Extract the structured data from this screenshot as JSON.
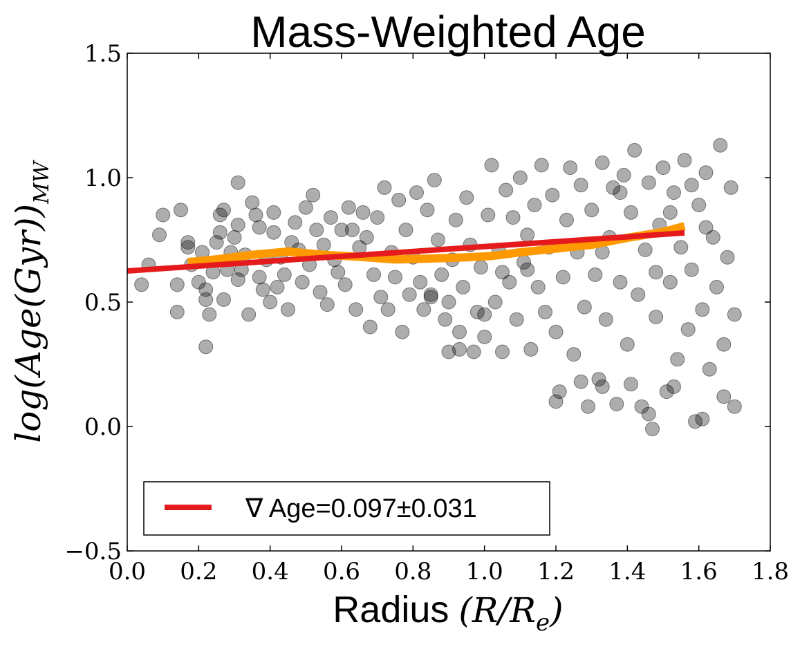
{
  "chart_data": {
    "type": "scatter",
    "title": "Mass-Weighted Age",
    "xlabel_text": "Radius",
    "xlabel_math": "(R/R",
    "xlabel_sub": "e",
    "xlabel_close": ")",
    "ylabel_math": "log(Age(Gyr))",
    "ylabel_sub": "MW",
    "xlim": [
      0.0,
      1.8
    ],
    "ylim": [
      -0.5,
      1.5
    ],
    "xticks": [
      0.0,
      0.2,
      0.4,
      0.6,
      0.8,
      1.0,
      1.2,
      1.4,
      1.6,
      1.8
    ],
    "xtick_labels": [
      "0.0",
      "0.2",
      "0.4",
      "0.6",
      "0.8",
      "1.0",
      "1.2",
      "1.4",
      "1.6",
      "1.8"
    ],
    "yticks": [
      -0.5,
      0.0,
      0.5,
      1.0,
      1.5
    ],
    "ytick_labels": [
      "−0.5",
      "0.0",
      "0.5",
      "1.0",
      "1.5"
    ],
    "legend": {
      "label": "∇ Age=0.097±0.031",
      "location": "lower-left"
    },
    "colors": {
      "fit_line": "#e41a1c",
      "running_median": "#ff9900",
      "points": "#000000"
    },
    "fit_line": {
      "name": "∇ Age=0.097±0.031",
      "x": [
        0.0,
        1.56
      ],
      "y": [
        0.625,
        0.778
      ]
    },
    "running_median": {
      "x": [
        0.17,
        0.25,
        0.35,
        0.45,
        0.55,
        0.65,
        0.75,
        0.85,
        0.95,
        1.02,
        1.1,
        1.2,
        1.3,
        1.4,
        1.5,
        1.56
      ],
      "y": [
        0.66,
        0.672,
        0.69,
        0.703,
        0.69,
        0.682,
        0.671,
        0.675,
        0.68,
        0.685,
        0.7,
        0.715,
        0.73,
        0.758,
        0.782,
        0.805
      ]
    },
    "points": [
      [
        0.04,
        0.57
      ],
      [
        0.06,
        0.65
      ],
      [
        0.09,
        0.77
      ],
      [
        0.1,
        0.85
      ],
      [
        0.14,
        0.46
      ],
      [
        0.14,
        0.57
      ],
      [
        0.15,
        0.87
      ],
      [
        0.17,
        0.72
      ],
      [
        0.17,
        0.74
      ],
      [
        0.18,
        0.65
      ],
      [
        0.2,
        0.58
      ],
      [
        0.21,
        0.7
      ],
      [
        0.22,
        0.55
      ],
      [
        0.22,
        0.51
      ],
      [
        0.22,
        0.32
      ],
      [
        0.23,
        0.45
      ],
      [
        0.24,
        0.62
      ],
      [
        0.25,
        0.74
      ],
      [
        0.26,
        0.78
      ],
      [
        0.26,
        0.85
      ],
      [
        0.27,
        0.87
      ],
      [
        0.27,
        0.51
      ],
      [
        0.28,
        0.63
      ],
      [
        0.29,
        0.7
      ],
      [
        0.3,
        0.76
      ],
      [
        0.31,
        0.59
      ],
      [
        0.31,
        0.81
      ],
      [
        0.31,
        0.98
      ],
      [
        0.32,
        0.63
      ],
      [
        0.33,
        0.69
      ],
      [
        0.34,
        0.45
      ],
      [
        0.35,
        0.9
      ],
      [
        0.36,
        0.85
      ],
      [
        0.37,
        0.8
      ],
      [
        0.37,
        0.6
      ],
      [
        0.38,
        0.55
      ],
      [
        0.39,
        0.67
      ],
      [
        0.4,
        0.5
      ],
      [
        0.41,
        0.78
      ],
      [
        0.41,
        0.86
      ],
      [
        0.42,
        0.56
      ],
      [
        0.43,
        0.68
      ],
      [
        0.44,
        0.61
      ],
      [
        0.45,
        0.47
      ],
      [
        0.46,
        0.74
      ],
      [
        0.47,
        0.82
      ],
      [
        0.48,
        0.71
      ],
      [
        0.49,
        0.58
      ],
      [
        0.5,
        0.88
      ],
      [
        0.51,
        0.65
      ],
      [
        0.52,
        0.93
      ],
      [
        0.53,
        0.79
      ],
      [
        0.54,
        0.54
      ],
      [
        0.55,
        0.73
      ],
      [
        0.56,
        0.49
      ],
      [
        0.57,
        0.84
      ],
      [
        0.58,
        0.67
      ],
      [
        0.59,
        0.62
      ],
      [
        0.6,
        0.79
      ],
      [
        0.61,
        0.57
      ],
      [
        0.62,
        0.88
      ],
      [
        0.63,
        0.79
      ],
      [
        0.64,
        0.47
      ],
      [
        0.65,
        0.72
      ],
      [
        0.66,
        0.86
      ],
      [
        0.67,
        0.76
      ],
      [
        0.68,
        0.4
      ],
      [
        0.69,
        0.61
      ],
      [
        0.7,
        0.84
      ],
      [
        0.71,
        0.52
      ],
      [
        0.72,
        0.96
      ],
      [
        0.73,
        0.47
      ],
      [
        0.74,
        0.7
      ],
      [
        0.75,
        0.6
      ],
      [
        0.76,
        0.91
      ],
      [
        0.77,
        0.38
      ],
      [
        0.78,
        0.79
      ],
      [
        0.79,
        0.53
      ],
      [
        0.8,
        0.68
      ],
      [
        0.81,
        0.94
      ],
      [
        0.82,
        0.58
      ],
      [
        0.83,
        0.47
      ],
      [
        0.84,
        0.87
      ],
      [
        0.85,
        0.52
      ],
      [
        0.86,
        0.99
      ],
      [
        0.87,
        0.75
      ],
      [
        0.88,
        0.61
      ],
      [
        0.89,
        0.43
      ],
      [
        0.9,
        0.3
      ],
      [
        0.91,
        0.67
      ],
      [
        0.92,
        0.83
      ],
      [
        0.93,
        0.31
      ],
      [
        0.94,
        0.56
      ],
      [
        0.95,
        0.92
      ],
      [
        0.96,
        0.73
      ],
      [
        0.97,
        0.3
      ],
      [
        0.98,
        0.46
      ],
      [
        0.99,
        0.64
      ],
      [
        1.0,
        0.36
      ],
      [
        1.01,
        0.85
      ],
      [
        1.02,
        1.05
      ],
      [
        1.03,
        0.5
      ],
      [
        1.04,
        0.71
      ],
      [
        1.05,
        0.3
      ],
      [
        1.06,
        0.95
      ],
      [
        1.07,
        0.58
      ],
      [
        1.08,
        0.84
      ],
      [
        1.09,
        0.43
      ],
      [
        1.1,
        1.0
      ],
      [
        1.11,
        0.66
      ],
      [
        1.12,
        0.77
      ],
      [
        1.13,
        0.31
      ],
      [
        1.14,
        0.89
      ],
      [
        1.15,
        0.56
      ],
      [
        1.16,
        1.05
      ],
      [
        1.17,
        0.46
      ],
      [
        1.18,
        0.72
      ],
      [
        1.19,
        0.93
      ],
      [
        1.2,
        0.38
      ],
      [
        1.21,
        0.14
      ],
      [
        1.22,
        0.6
      ],
      [
        1.23,
        0.83
      ],
      [
        1.24,
        1.04
      ],
      [
        1.25,
        0.29
      ],
      [
        1.26,
        0.7
      ],
      [
        1.27,
        0.97
      ],
      [
        1.28,
        0.48
      ],
      [
        1.29,
        0.08
      ],
      [
        1.3,
        0.87
      ],
      [
        1.31,
        0.61
      ],
      [
        1.32,
        0.19
      ],
      [
        1.33,
        1.06
      ],
      [
        1.34,
        0.43
      ],
      [
        1.35,
        0.76
      ],
      [
        1.36,
        0.96
      ],
      [
        1.37,
        0.09
      ],
      [
        1.38,
        0.58
      ],
      [
        1.39,
        1.01
      ],
      [
        1.4,
        0.33
      ],
      [
        1.41,
        0.86
      ],
      [
        1.42,
        1.11
      ],
      [
        1.43,
        0.53
      ],
      [
        1.44,
        0.08
      ],
      [
        1.45,
        0.71
      ],
      [
        1.46,
        0.98
      ],
      [
        1.47,
        -0.01
      ],
      [
        1.48,
        0.44
      ],
      [
        1.49,
        0.81
      ],
      [
        1.5,
        1.04
      ],
      [
        1.51,
        0.14
      ],
      [
        1.52,
        0.58
      ],
      [
        1.53,
        0.94
      ],
      [
        1.54,
        0.27
      ],
      [
        1.55,
        0.72
      ],
      [
        1.56,
        1.07
      ],
      [
        1.57,
        0.39
      ],
      [
        1.58,
        0.63
      ],
      [
        1.59,
        0.02
      ],
      [
        1.6,
        0.89
      ],
      [
        1.61,
        0.47
      ],
      [
        1.62,
        1.02
      ],
      [
        1.63,
        0.23
      ],
      [
        1.64,
        0.76
      ],
      [
        1.65,
        0.56
      ],
      [
        1.66,
        1.13
      ],
      [
        1.67,
        0.33
      ],
      [
        1.68,
        0.68
      ],
      [
        1.69,
        0.96
      ],
      [
        1.7,
        0.08
      ],
      [
        1.7,
        0.45
      ],
      [
        0.85,
        0.53
      ],
      [
        0.9,
        0.5
      ],
      [
        1.05,
        0.62
      ],
      [
        1.12,
        0.63
      ],
      [
        1.33,
        0.7
      ],
      [
        1.38,
        0.94
      ],
      [
        1.48,
        0.62
      ],
      [
        1.52,
        0.86
      ],
      [
        1.58,
        0.97
      ],
      [
        1.62,
        0.8
      ],
      [
        1.27,
        0.18
      ],
      [
        1.33,
        0.16
      ],
      [
        1.41,
        0.17
      ],
      [
        1.46,
        0.05
      ],
      [
        1.53,
        0.16
      ],
      [
        1.61,
        0.03
      ],
      [
        1.67,
        0.12
      ],
      [
        1.2,
        0.1
      ],
      [
        0.93,
        0.38
      ],
      [
        1.0,
        0.45
      ]
    ]
  }
}
